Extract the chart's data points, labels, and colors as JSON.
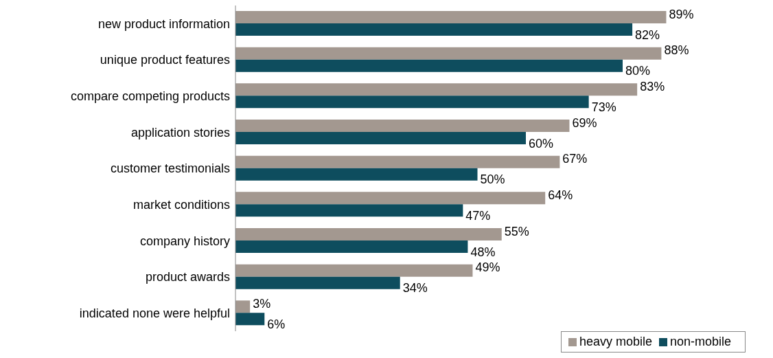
{
  "chart_data": {
    "type": "bar",
    "orientation": "horizontal",
    "categories": [
      "new product information",
      "unique product features",
      "compare competing products",
      "application stories",
      "customer testimonials",
      "market conditions",
      "company history",
      "product awards",
      "indicated none were helpful"
    ],
    "series": [
      {
        "name": "heavy mobile",
        "color": "#a39890",
        "values": [
          89,
          88,
          83,
          69,
          67,
          64,
          55,
          49,
          3
        ],
        "value_labels": [
          "89%",
          "88%",
          "83%",
          "69%",
          "67%",
          "64%",
          "55%",
          "49%",
          "3%"
        ]
      },
      {
        "name": "non-mobile",
        "color": "#0e4d5e",
        "values": [
          82,
          80,
          73,
          60,
          50,
          47,
          48,
          34,
          6
        ],
        "value_labels": [
          "82%",
          "80%",
          "73%",
          "60%",
          "50%",
          "47%",
          "48%",
          "34%",
          "6%"
        ]
      }
    ],
    "legend": "bottom right"
  }
}
